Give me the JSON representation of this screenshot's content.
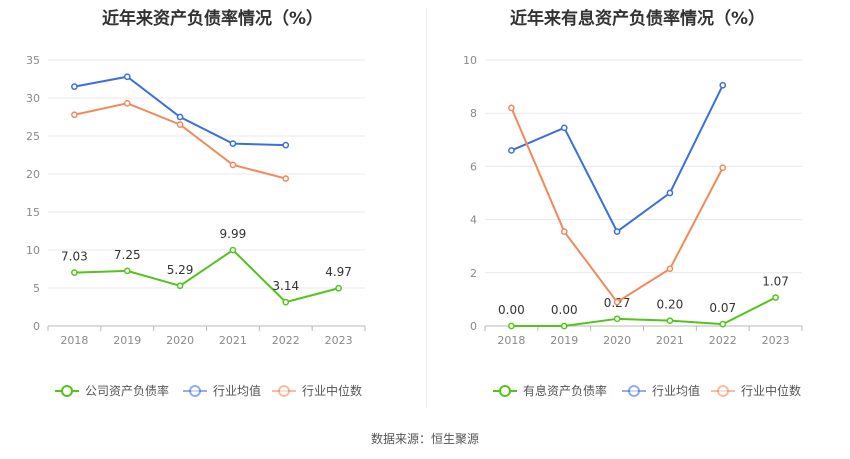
{
  "chart_data": [
    {
      "type": "line",
      "title": "近年来资产负债率情况（%）",
      "categories": [
        "2018",
        "2019",
        "2020",
        "2021",
        "2022",
        "2023"
      ],
      "ylim": [
        0,
        35
      ],
      "yticks": [
        0,
        5,
        10,
        15,
        20,
        25,
        30,
        35
      ],
      "grid": true,
      "legend_position": "bottom",
      "series": [
        {
          "name": "公司资产负债率",
          "color": "#52c41a",
          "values": [
            7.03,
            7.25,
            5.29,
            9.99,
            3.14,
            4.97
          ],
          "labels": [
            "7.03",
            "7.25",
            "5.29",
            "9.99",
            "3.14",
            "4.97"
          ]
        },
        {
          "name": "行业均值",
          "color": "#3a6fdc",
          "values": [
            31.5,
            32.8,
            27.5,
            24.0,
            23.8,
            null
          ]
        },
        {
          "name": "行业中位数",
          "color": "#f08a5d",
          "values": [
            27.8,
            29.3,
            26.5,
            21.2,
            19.4,
            null
          ]
        }
      ]
    },
    {
      "type": "line",
      "title": "近年来有息资产负债率情况（%）",
      "categories": [
        "2018",
        "2019",
        "2020",
        "2021",
        "2022",
        "2023"
      ],
      "ylim": [
        0,
        10
      ],
      "yticks": [
        0,
        2,
        4,
        6,
        8,
        10
      ],
      "grid": true,
      "legend_position": "bottom",
      "series": [
        {
          "name": "有息资产负债率",
          "color": "#52c41a",
          "values": [
            0.0,
            0.0,
            0.27,
            0.2,
            0.07,
            1.07
          ],
          "labels": [
            "0.00",
            "0.00",
            "0.27",
            "0.20",
            "0.07",
            "1.07"
          ]
        },
        {
          "name": "行业均值",
          "color": "#3a6fdc",
          "values": [
            6.6,
            7.45,
            3.55,
            5.0,
            9.05,
            null
          ]
        },
        {
          "name": "行业中位数",
          "color": "#f08a5d",
          "values": [
            8.2,
            3.55,
            0.9,
            2.15,
            5.95,
            null
          ]
        }
      ]
    }
  ],
  "source_text": "数据来源：恒生聚源"
}
